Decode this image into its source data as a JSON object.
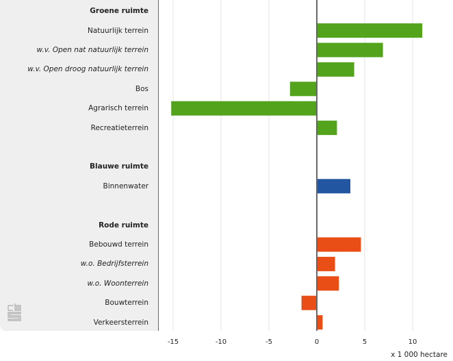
{
  "chart_data": {
    "type": "bar",
    "orientation": "horizontal",
    "unit_label": "x 1 000 hectare",
    "xlim": [
      -15.5,
      13.5
    ],
    "xticks": [
      -15,
      -10,
      -5,
      0,
      5,
      10
    ],
    "grid": true,
    "colors": {
      "groen": "#53a31d",
      "blauw": "#2256a1",
      "rood": "#e84e15"
    },
    "rows": [
      {
        "label": "Groene ruimte",
        "kind": "header"
      },
      {
        "label": "Natuurlijk terrein",
        "kind": "normal",
        "group": "groen",
        "value": 11.0
      },
      {
        "label": "w.v. Open nat natuurlijk terrein",
        "kind": "italic",
        "group": "groen",
        "value": 6.9
      },
      {
        "label": "w.v. Open droog natuurlijk terrein",
        "kind": "italic",
        "group": "groen",
        "value": 3.9
      },
      {
        "label": "Bos",
        "kind": "normal",
        "group": "groen",
        "value": -2.8
      },
      {
        "label": "Agrarisch terrein",
        "kind": "normal",
        "group": "groen",
        "value": -15.2
      },
      {
        "label": "Recreatieterrein",
        "kind": "normal",
        "group": "groen",
        "value": 2.1
      },
      {
        "label": "",
        "kind": "spacer"
      },
      {
        "label": "Blauwe ruimte",
        "kind": "header"
      },
      {
        "label": "Binnenwater",
        "kind": "normal",
        "group": "blauw",
        "value": 3.5
      },
      {
        "label": "",
        "kind": "spacer"
      },
      {
        "label": "Rode ruimte",
        "kind": "header"
      },
      {
        "label": "Bebouwd terrein",
        "kind": "normal",
        "group": "rood",
        "value": 4.6
      },
      {
        "label": "w.o. Bedrijfsterrein",
        "kind": "italic",
        "group": "rood",
        "value": 1.9
      },
      {
        "label": "w.o. Woonterrein",
        "kind": "italic",
        "group": "rood",
        "value": 2.3
      },
      {
        "label": "Bouwterrein",
        "kind": "normal",
        "group": "rood",
        "value": -1.6
      },
      {
        "label": "Verkeersterrein",
        "kind": "normal",
        "group": "rood",
        "value": 0.6
      }
    ]
  },
  "logo": {
    "text": "cbs"
  }
}
